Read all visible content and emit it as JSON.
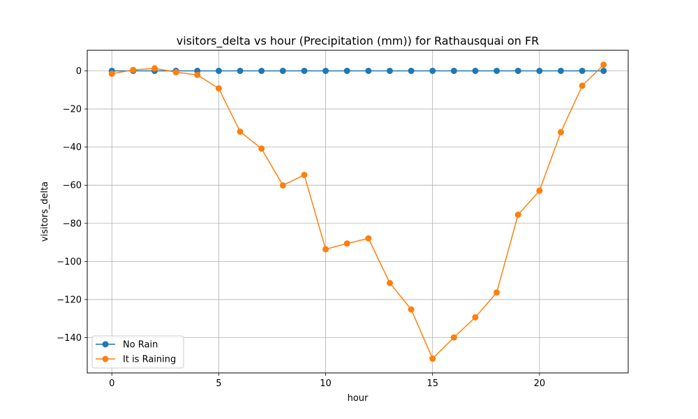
{
  "chart_data": {
    "type": "line",
    "title": "visitors_delta vs hour (Precipitation (mm)) for Rathausquai on FR",
    "xlabel": "hour",
    "ylabel": "visitors_delta",
    "xlim": [
      -1.15,
      24.15
    ],
    "ylim": [
      -158.5,
      10.8
    ],
    "xticks": [
      0,
      5,
      10,
      15,
      20
    ],
    "yticks": [
      0,
      -20,
      -40,
      -60,
      -80,
      -100,
      -120,
      -140
    ],
    "grid": true,
    "legend_position": "lower-left",
    "x": [
      0,
      1,
      2,
      3,
      4,
      5,
      6,
      7,
      8,
      9,
      10,
      11,
      12,
      13,
      14,
      15,
      16,
      17,
      18,
      19,
      20,
      21,
      22,
      23
    ],
    "series": [
      {
        "name": "No Rain",
        "color": "#1f77b4",
        "values": [
          0,
          0,
          0,
          0,
          0,
          0,
          0,
          0,
          0,
          0,
          0,
          0,
          0,
          0,
          0,
          0,
          0,
          0,
          0,
          0,
          0,
          0,
          0,
          0
        ]
      },
      {
        "name": "It is Raining",
        "color": "#ff7f0e",
        "values": [
          -1.5,
          0.5,
          1.3,
          -0.7,
          -2.1,
          -9.2,
          -31.9,
          -40.8,
          -60.1,
          -54.6,
          -93.6,
          -90.6,
          -87.9,
          -111.3,
          -125.2,
          -151.0,
          -139.9,
          -129.3,
          -116.3,
          -75.5,
          -62.9,
          -32.2,
          -7.8,
          3.2
        ]
      }
    ]
  }
}
